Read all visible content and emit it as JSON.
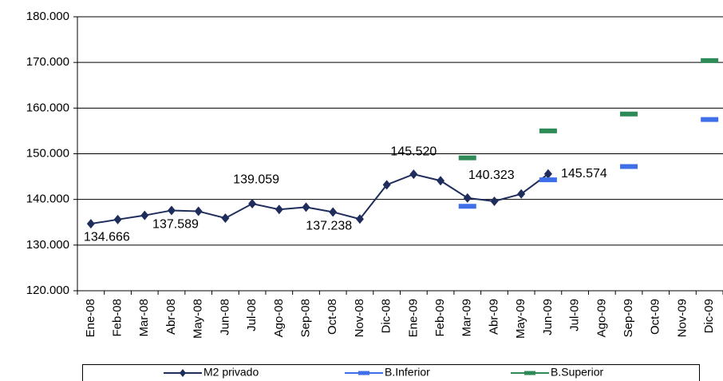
{
  "chart_data": {
    "type": "line",
    "categories": [
      "Ene-08",
      "Feb-08",
      "Mar-08",
      "Abr-08",
      "May-08",
      "Jun-08",
      "Jul-08",
      "Ago-08",
      "Sep-08",
      "Oct-08",
      "Nov-08",
      "Dic-08",
      "Ene-09",
      "Feb-09",
      "Mar-09",
      "Abr-09",
      "May-09",
      "Jun-09",
      "Jul-09",
      "Ago-09",
      "Sep-09",
      "Oct-09",
      "Nov-09",
      "Dic-09"
    ],
    "series": [
      {
        "name": "M2 privado",
        "color": "#1f2d5c",
        "marker": "diamond",
        "values": [
          134666,
          135600,
          136500,
          137589,
          137400,
          135900,
          139059,
          137800,
          138300,
          137238,
          135700,
          143200,
          145520,
          144100,
          140323,
          139600,
          141200,
          145574,
          null,
          null,
          null,
          null,
          null,
          null
        ],
        "value_labels": [
          "134.666",
          null,
          null,
          "137.589",
          null,
          null,
          "139.059",
          null,
          null,
          "137.238",
          null,
          null,
          "145.520",
          null,
          "140.323",
          null,
          null,
          "145.574",
          null,
          null,
          null,
          null,
          null,
          null
        ]
      },
      {
        "name": "B.Inferior",
        "color": "#3e6fe8",
        "marker": "dash",
        "values": [
          null,
          null,
          null,
          null,
          null,
          null,
          null,
          null,
          null,
          null,
          null,
          null,
          null,
          null,
          138500,
          null,
          null,
          144300,
          null,
          null,
          147200,
          null,
          null,
          157500
        ]
      },
      {
        "name": "B.Superior",
        "color": "#2e8b57",
        "marker": "dash",
        "values": [
          null,
          null,
          null,
          null,
          null,
          null,
          null,
          null,
          null,
          null,
          null,
          null,
          null,
          null,
          149100,
          null,
          null,
          155000,
          null,
          null,
          158700,
          null,
          null,
          170400
        ]
      }
    ],
    "ylim": [
      120000,
      180000
    ],
    "yticks": [
      {
        "value": 120000,
        "label": "120.000"
      },
      {
        "value": 130000,
        "label": "130.000"
      },
      {
        "value": 140000,
        "label": "140.000"
      },
      {
        "value": 150000,
        "label": "150.000"
      },
      {
        "value": 160000,
        "label": "160.000"
      },
      {
        "value": 170000,
        "label": "170.000"
      },
      {
        "value": 180000,
        "label": "180.000"
      }
    ],
    "grid": true,
    "legend": "bottom"
  }
}
